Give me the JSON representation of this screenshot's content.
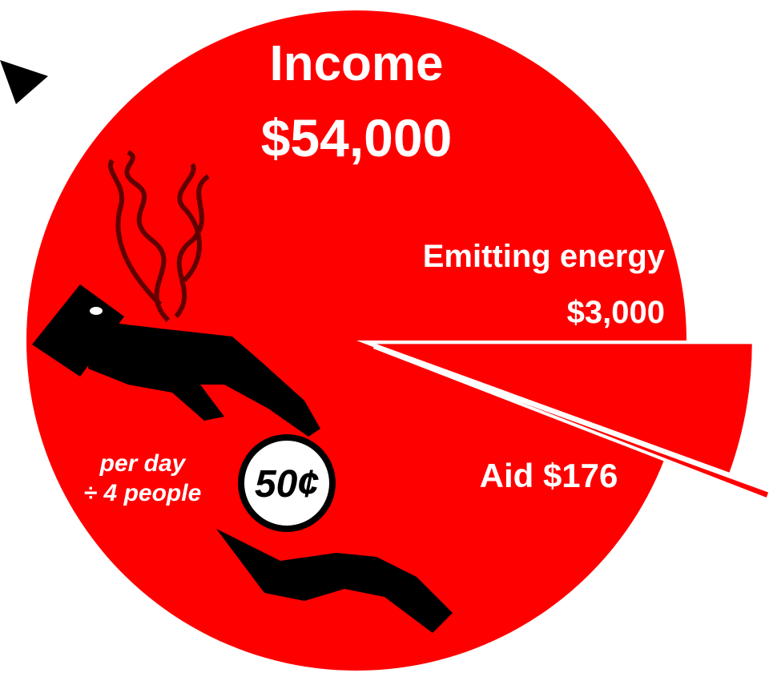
{
  "chart_data": {
    "type": "pie",
    "title": "Income",
    "total": 54000,
    "total_label": "$54,000",
    "categories": [
      "Emitting energy",
      "Aid"
    ],
    "values": [
      3000,
      176
    ],
    "value_labels": [
      "$3,000",
      "$176"
    ],
    "color": "#ff0000",
    "annotations": [
      "per day",
      "÷ 4 people",
      "50¢"
    ]
  }
}
